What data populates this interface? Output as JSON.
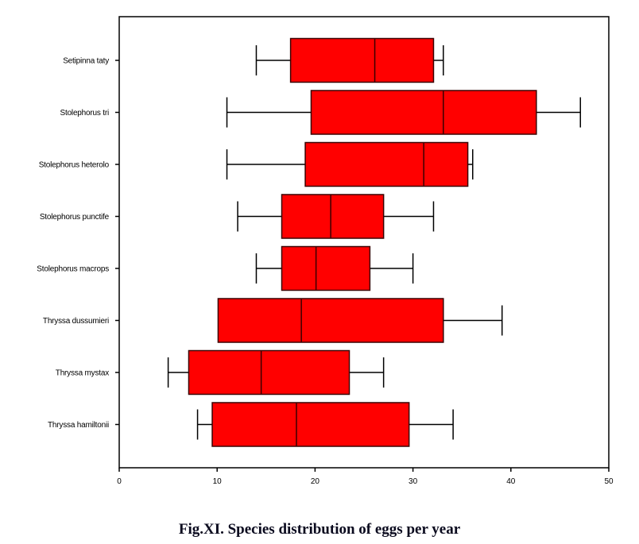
{
  "caption": "Fig.XI. Species distribution of eggs per year",
  "colors": {
    "box_fill": "#ff0000",
    "box_stroke": "#3a0000",
    "line": "#000000"
  },
  "chart_data": {
    "type": "boxplot",
    "orientation": "horizontal",
    "title": "",
    "xlabel": "",
    "ylabel": "",
    "xlim": [
      0,
      50
    ],
    "x_ticks": [
      0,
      10,
      20,
      30,
      40,
      50
    ],
    "grid": false,
    "legend": "none",
    "categories": [
      "Setipinna taty",
      "Stolephorus tri",
      "Stolephorus heterolo",
      "Stolephorus punctife",
      "Stolephorus macrops",
      "Thryssa dussumieri",
      "Thryssa mystax",
      "Thryssa hamiltonii"
    ],
    "series": [
      {
        "name": "Setipinna taty",
        "min": 14.0,
        "q1": 17.5,
        "median": 26.1,
        "q3": 32.1,
        "max": 33.1
      },
      {
        "name": "Stolephorus tri",
        "min": 11.0,
        "q1": 19.6,
        "median": 33.1,
        "q3": 42.6,
        "max": 47.1
      },
      {
        "name": "Stolephorus heterolo",
        "min": 11.0,
        "q1": 19.0,
        "median": 31.1,
        "q3": 35.6,
        "max": 36.1
      },
      {
        "name": "Stolephorus punctife",
        "min": 12.1,
        "q1": 16.6,
        "median": 21.6,
        "q3": 27.0,
        "max": 32.1
      },
      {
        "name": "Stolephorus macrops",
        "min": 14.0,
        "q1": 16.6,
        "median": 20.1,
        "q3": 25.6,
        "max": 30.0
      },
      {
        "name": "Thryssa dussumieri",
        "min": 10.1,
        "q1": 10.1,
        "median": 18.6,
        "q3": 33.1,
        "max": 39.1
      },
      {
        "name": "Thryssa mystax",
        "min": 5.0,
        "q1": 7.1,
        "median": 14.5,
        "q3": 23.5,
        "max": 27.0
      },
      {
        "name": "Thryssa hamiltonii",
        "min": 8.0,
        "q1": 9.5,
        "median": 18.1,
        "q3": 29.6,
        "max": 34.1
      }
    ]
  }
}
